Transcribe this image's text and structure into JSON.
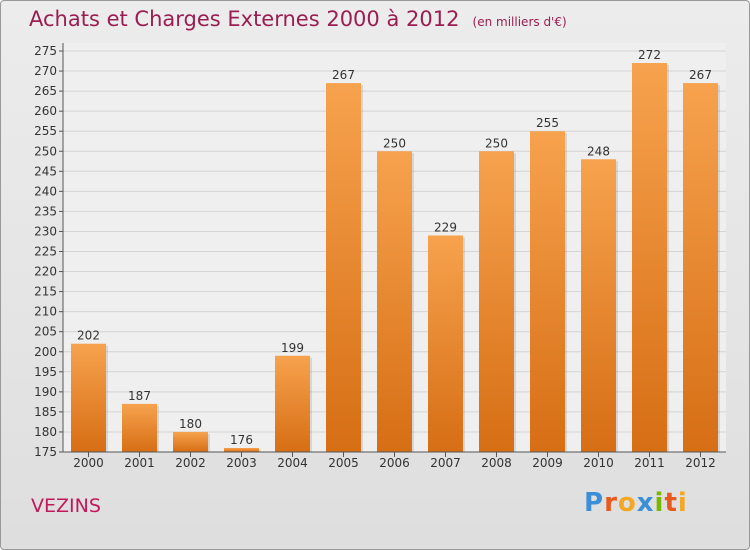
{
  "title": "Achats et Charges Externes 2000 à 2012",
  "subtitle": "(en milliers d'€)",
  "city": "VEZINS",
  "logo": {
    "text": "Proxiti",
    "colors": [
      "#3a8fd6",
      "#e85a1c",
      "#f5a623",
      "#3a8fd6",
      "#7ab800",
      "#e85a1c",
      "#f5a623"
    ]
  },
  "colors": {
    "bar_top": "#f7a24e",
    "bar_bottom": "#d66e14",
    "title": "#9a1e52"
  },
  "chart_data": {
    "type": "bar",
    "categories": [
      "2000",
      "2001",
      "2002",
      "2003",
      "2004",
      "2005",
      "2006",
      "2007",
      "2008",
      "2009",
      "2010",
      "2011",
      "2012"
    ],
    "values": [
      202,
      187,
      180,
      176,
      199,
      267,
      250,
      229,
      250,
      255,
      248,
      272,
      267
    ],
    "ylim": [
      175,
      275
    ],
    "yticks": [
      175,
      180,
      185,
      190,
      195,
      200,
      205,
      210,
      215,
      220,
      225,
      230,
      235,
      240,
      245,
      250,
      255,
      260,
      265,
      270,
      275
    ],
    "grid": true,
    "data_labels": true
  }
}
